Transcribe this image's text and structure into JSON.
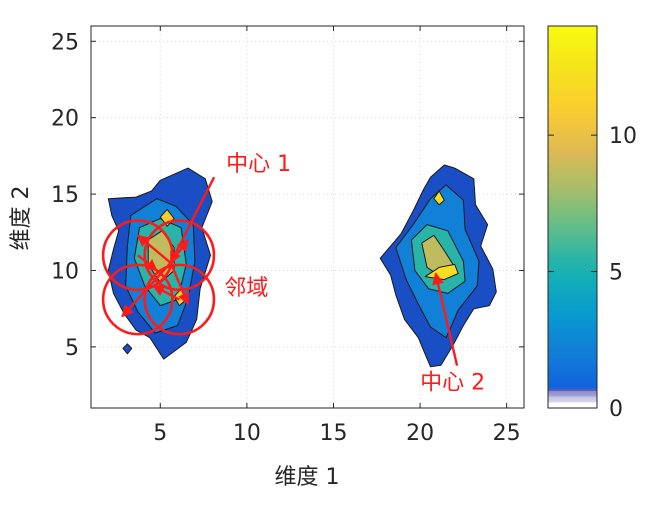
{
  "chart_data": {
    "type": "contour",
    "xlabel": "维度 1",
    "ylabel": "维度 2",
    "xlim": [
      1,
      26
    ],
    "ylim": [
      1,
      26
    ],
    "xticks": [
      5,
      10,
      15,
      20,
      25
    ],
    "yticks": [
      5,
      10,
      15,
      20,
      25
    ],
    "grid": true,
    "colorbar": {
      "range": [
        0,
        14
      ],
      "ticks": [
        0,
        5,
        10
      ],
      "colormap": "parula",
      "placement": "right"
    },
    "clusters": [
      {
        "levels": [
          {
            "value": 1,
            "polygon": [
              [
                2.0,
                14.7
              ],
              [
                3.6,
                14.8
              ],
              [
                4.5,
                15.2
              ],
              [
                5.0,
                15.9
              ],
              [
                6.6,
                16.7
              ],
              [
                7.6,
                16.0
              ],
              [
                8.0,
                14.5
              ],
              [
                7.4,
                12.8
              ],
              [
                7.9,
                11.0
              ],
              [
                7.3,
                8.8
              ],
              [
                7.1,
                6.8
              ],
              [
                6.5,
                5.3
              ],
              [
                5.2,
                4.2
              ],
              [
                4.4,
                5.6
              ],
              [
                3.6,
                6.1
              ],
              [
                2.9,
                7.2
              ],
              [
                2.3,
                8.5
              ],
              [
                2.0,
                10.0
              ],
              [
                2.3,
                11.4
              ],
              [
                2.6,
                12.6
              ],
              [
                2.2,
                13.6
              ]
            ]
          },
          {
            "value": 3,
            "polygon": [
              [
                3.3,
                13.6
              ],
              [
                4.8,
                14.7
              ],
              [
                5.9,
                14.2
              ],
              [
                6.9,
                13.0
              ],
              [
                7.0,
                10.6
              ],
              [
                6.6,
                8.2
              ],
              [
                6.0,
                6.4
              ],
              [
                4.7,
                5.9
              ],
              [
                3.7,
                7.3
              ],
              [
                3.0,
                9.0
              ],
              [
                3.1,
                11.6
              ]
            ]
          },
          {
            "value": 6,
            "polygon": [
              [
                3.8,
                12.8
              ],
              [
                5.0,
                13.4
              ],
              [
                6.2,
                12.8
              ],
              [
                6.5,
                10.4
              ],
              [
                6.0,
                8.1
              ],
              [
                5.0,
                7.7
              ],
              [
                4.1,
                9.0
              ],
              [
                3.5,
                10.8
              ]
            ]
          },
          {
            "value": 9,
            "polygon": [
              [
                4.3,
                12.0
              ],
              [
                5.1,
                12.6
              ],
              [
                5.8,
                11.5
              ],
              [
                5.8,
                10.0
              ],
              [
                5.0,
                9.2
              ],
              [
                4.3,
                10.4
              ]
            ]
          },
          {
            "value": 11,
            "polygon": [
              [
                5.0,
                13.5
              ],
              [
                5.4,
                14.0
              ],
              [
                5.8,
                13.4
              ],
              [
                5.4,
                12.9
              ]
            ]
          },
          {
            "value": 11,
            "polygon": [
              [
                5.8,
                8.3
              ],
              [
                6.2,
                8.8
              ],
              [
                6.5,
                8.1
              ],
              [
                6.1,
                7.7
              ]
            ]
          }
        ]
      },
      {
        "levels": [
          {
            "value": 1,
            "polygon": [
              [
                17.7,
                10.8
              ],
              [
                18.9,
                12.4
              ],
              [
                19.6,
                13.9
              ],
              [
                20.2,
                15.3
              ],
              [
                20.6,
                16.1
              ],
              [
                21.4,
                16.9
              ],
              [
                22.0,
                16.7
              ],
              [
                23.1,
                16.0
              ],
              [
                23.2,
                14.3
              ],
              [
                23.9,
                13.0
              ],
              [
                23.5,
                11.6
              ],
              [
                24.2,
                10.1
              ],
              [
                24.4,
                8.6
              ],
              [
                24.0,
                7.7
              ],
              [
                23.1,
                7.5
              ],
              [
                22.5,
                6.4
              ],
              [
                21.9,
                5.1
              ],
              [
                21.2,
                3.8
              ],
              [
                20.6,
                3.7
              ],
              [
                20.3,
                4.5
              ],
              [
                19.9,
                5.6
              ],
              [
                19.1,
                6.8
              ],
              [
                18.6,
                8.4
              ],
              [
                18.3,
                9.7
              ]
            ]
          },
          {
            "value": 3,
            "polygon": [
              [
                18.6,
                11.5
              ],
              [
                19.6,
                13.0
              ],
              [
                20.6,
                14.7
              ],
              [
                21.5,
                15.6
              ],
              [
                22.5,
                14.6
              ],
              [
                22.6,
                12.7
              ],
              [
                23.4,
                10.6
              ],
              [
                23.3,
                9.0
              ],
              [
                22.2,
                7.4
              ],
              [
                21.5,
                5.6
              ],
              [
                20.6,
                6.3
              ],
              [
                19.9,
                7.8
              ],
              [
                19.2,
                9.4
              ]
            ]
          },
          {
            "value": 6,
            "polygon": [
              [
                19.5,
                12.0
              ],
              [
                20.4,
                13.0
              ],
              [
                21.6,
                12.6
              ],
              [
                22.5,
                10.6
              ],
              [
                22.6,
                9.3
              ],
              [
                21.6,
                8.5
              ],
              [
                20.5,
                8.8
              ],
              [
                19.7,
                10.0
              ]
            ]
          },
          {
            "value": 9,
            "polygon": [
              [
                20.1,
                11.8
              ],
              [
                20.8,
                12.3
              ],
              [
                21.4,
                11.3
              ],
              [
                21.9,
                10.4
              ],
              [
                21.2,
                9.6
              ],
              [
                20.4,
                10.2
              ]
            ]
          },
          {
            "value": 12,
            "polygon": [
              [
                20.3,
                9.6
              ],
              [
                21.1,
                10.2
              ],
              [
                22.0,
                10.4
              ],
              [
                22.2,
                9.8
              ],
              [
                21.4,
                9.4
              ]
            ]
          },
          {
            "value": 12,
            "polygon": [
              [
                20.8,
                14.7
              ],
              [
                21.1,
                15.2
              ],
              [
                21.4,
                14.6
              ],
              [
                21.1,
                14.3
              ]
            ]
          }
        ]
      },
      {
        "levels": [
          {
            "value": 1,
            "polygon": [
              [
                3.1,
                5.2
              ],
              [
                3.35,
                4.9
              ],
              [
                3.1,
                4.55
              ],
              [
                2.85,
                4.9
              ]
            ]
          }
        ]
      }
    ],
    "annotations": [
      {
        "text": "中心 1",
        "x": 8.8,
        "y": 16.5,
        "arrow_to": [
          5.6,
          10.5
        ]
      },
      {
        "text": "中心 2",
        "x": 20.0,
        "y": 2.2,
        "arrow_to": [
          20.9,
          9.8
        ]
      },
      {
        "text": "邻域",
        "x": 8.7,
        "y": 8.4
      }
    ],
    "neighborhood_circles": [
      {
        "center": [
          3.7,
          11.0
        ],
        "radius": 2.0
      },
      {
        "center": [
          6.1,
          11.0
        ],
        "radius": 2.0
      },
      {
        "center": [
          3.7,
          8.1
        ],
        "radius": 2.0
      },
      {
        "center": [
          6.1,
          8.1
        ],
        "radius": 2.0
      }
    ],
    "neighborhood_arrows": [
      {
        "from": [
          5.6,
          10.5
        ],
        "to": [
          3.7,
          12.3
        ]
      },
      {
        "from": [
          5.6,
          10.5
        ],
        "to": [
          6.6,
          12.0
        ]
      },
      {
        "from": [
          5.6,
          10.5
        ],
        "to": [
          2.8,
          7.0
        ]
      },
      {
        "from": [
          5.6,
          10.5
        ],
        "to": [
          6.6,
          7.8
        ]
      },
      {
        "from": [
          3.7,
          11.0
        ],
        "to": [
          4.8,
          10.0
        ]
      },
      {
        "from": [
          6.1,
          8.1
        ],
        "to": [
          4.6,
          9.0
        ]
      }
    ]
  }
}
